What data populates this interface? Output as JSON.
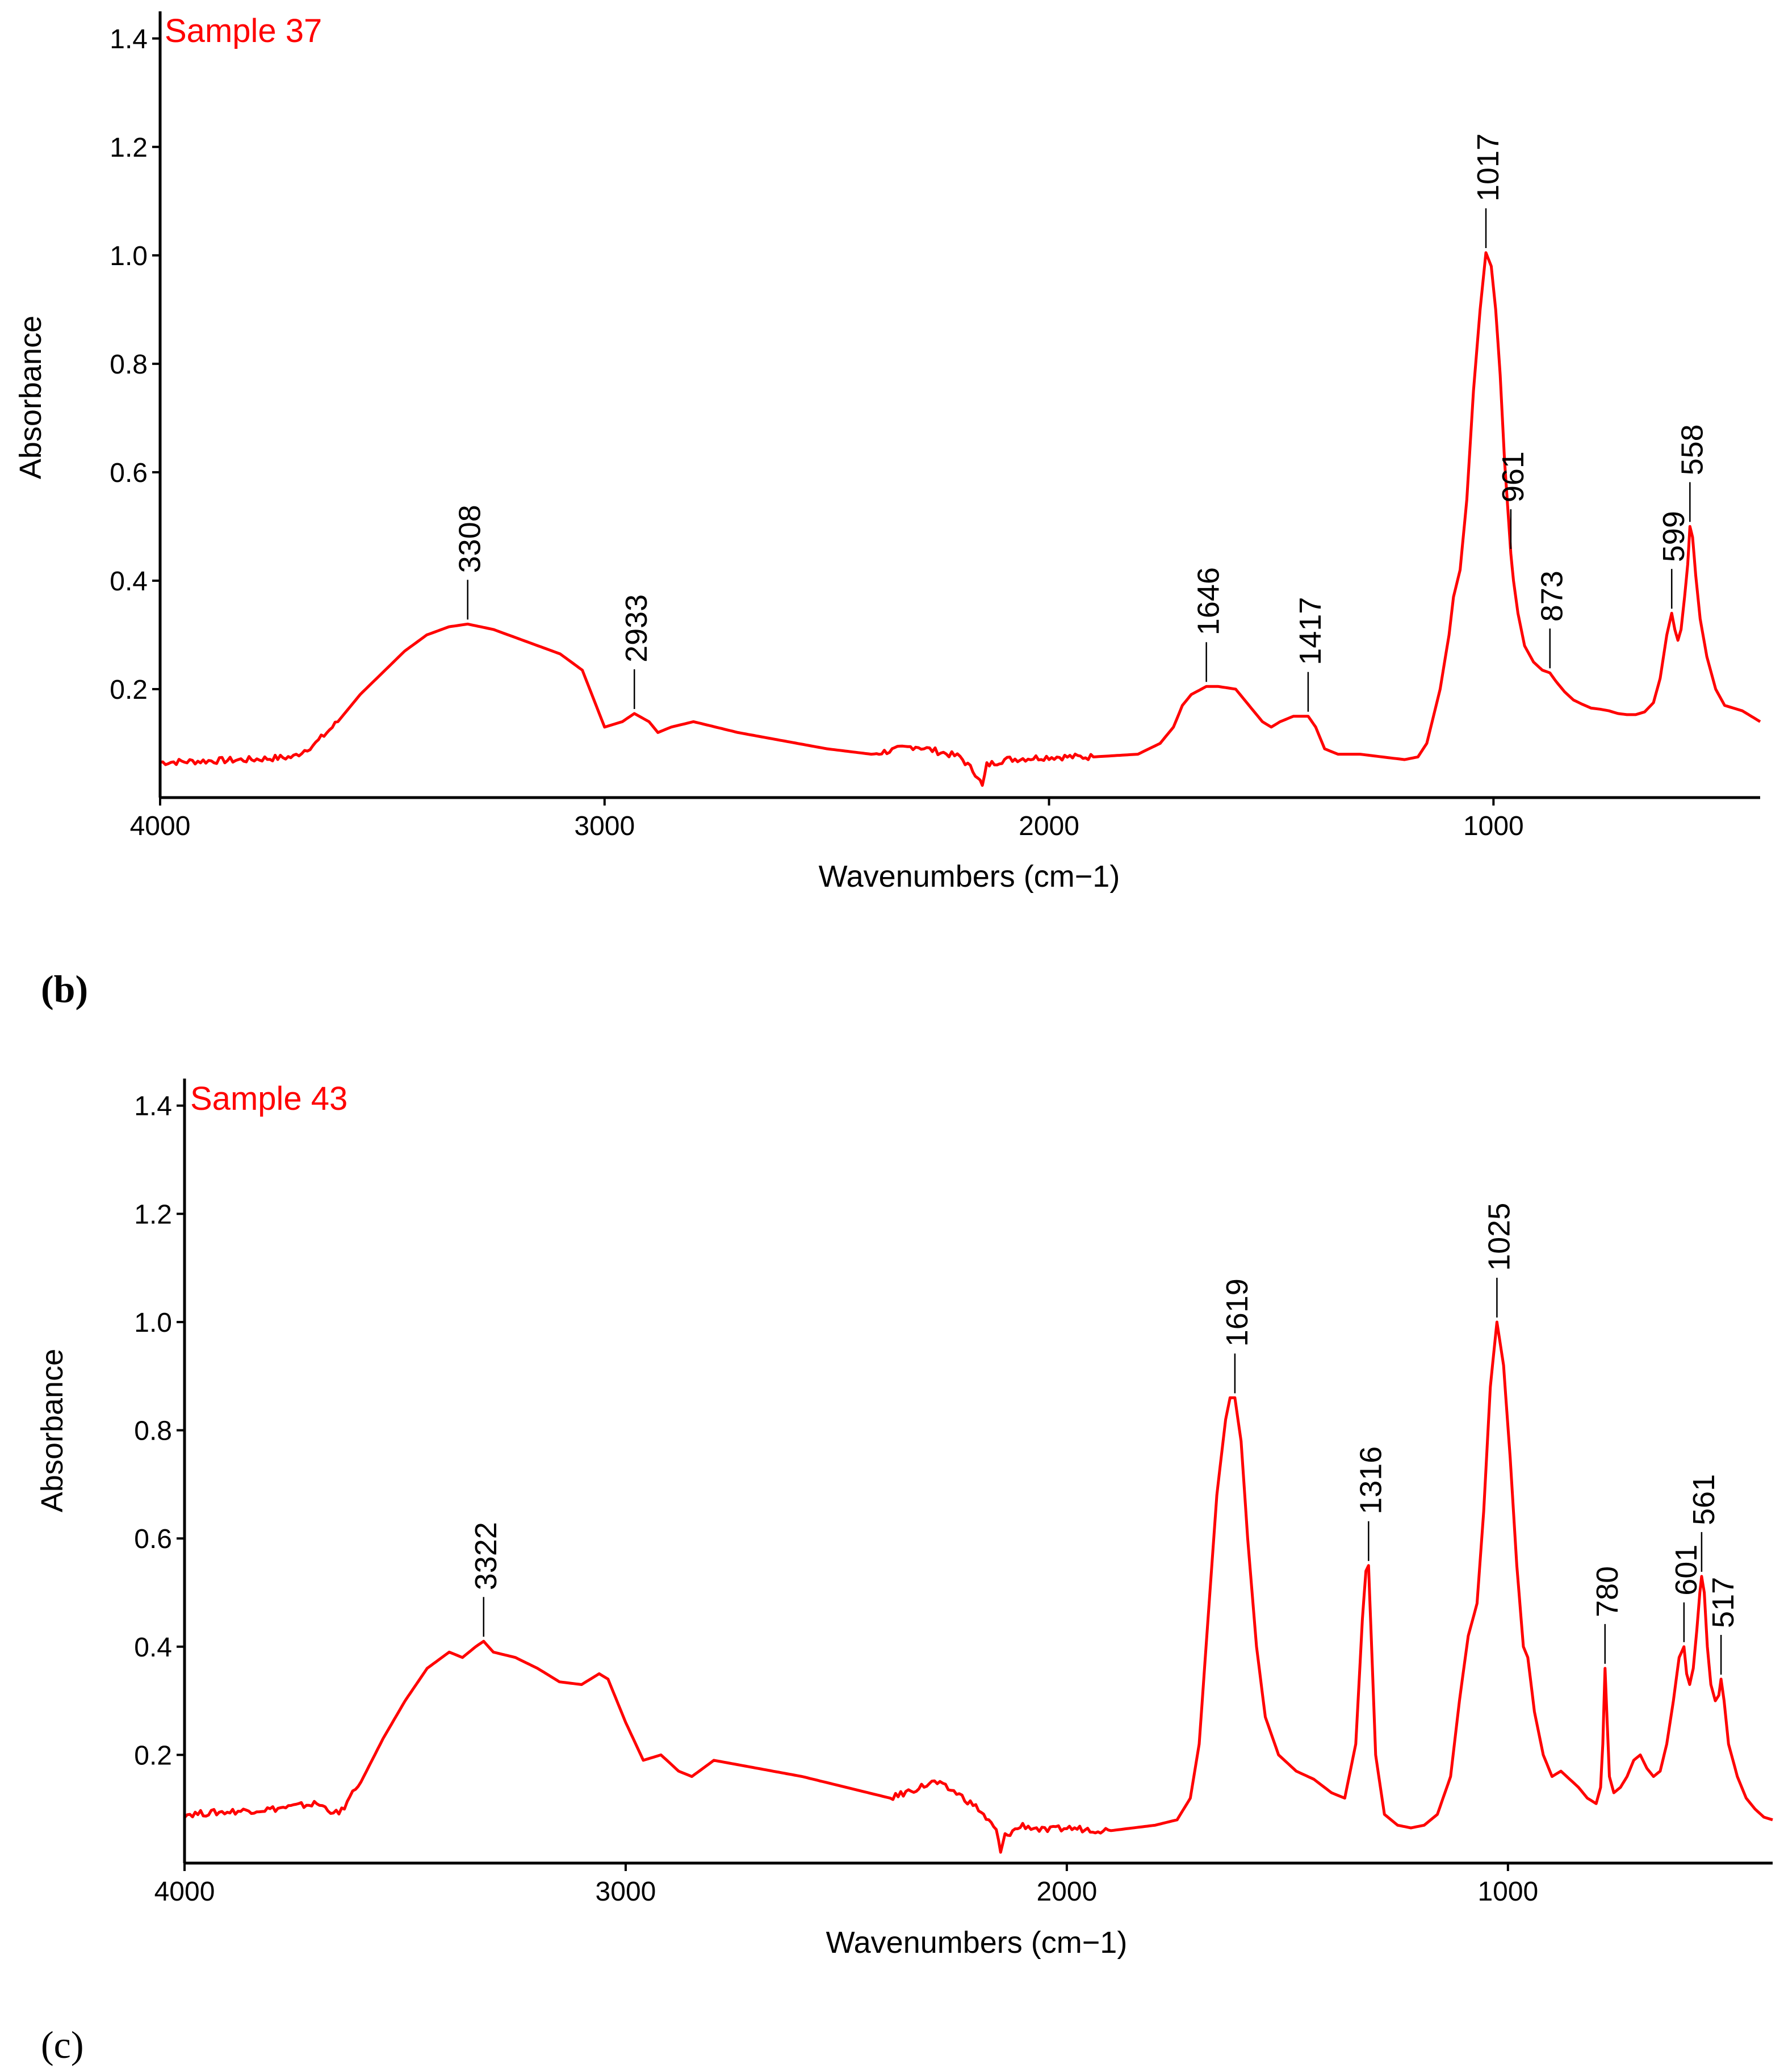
{
  "figure": {
    "series_color": "#ff0000",
    "axis_color": "#000000",
    "leader_color": "#000000"
  },
  "chart_data": [
    {
      "type": "line",
      "panel_letter": "",
      "title": "Sample 37",
      "xlabel": "Wavenumbers (cm−1)",
      "ylabel": "Absorbance",
      "xlim": [
        4000,
        400
      ],
      "ylim": [
        0,
        1.45
      ],
      "x_ticks": [
        4000,
        3000,
        2000,
        1000
      ],
      "x_tick_labels": [
        "4000",
        "3000",
        "2000",
        "1000"
      ],
      "y_ticks": [
        0.2,
        0.4,
        0.6,
        0.8,
        1.0,
        1.2,
        1.4
      ],
      "y_tick_labels": [
        "0.2",
        "0.4",
        "0.6",
        "0.8",
        "1.0",
        "1.2",
        "1.4"
      ],
      "grid": false,
      "series": [
        {
          "name": "Sample 37",
          "color": "#ff0000",
          "x": [
            4000,
            3800,
            3700,
            3650,
            3600,
            3550,
            3500,
            3450,
            3400,
            3350,
            3308,
            3250,
            3200,
            3150,
            3100,
            3050,
            3000,
            2960,
            2933,
            2900,
            2880,
            2850,
            2800,
            2700,
            2600,
            2500,
            2400,
            2300,
            2250,
            2200,
            2160,
            2150,
            2140,
            2100,
            2000,
            1900,
            1800,
            1750,
            1720,
            1700,
            1680,
            1646,
            1620,
            1580,
            1550,
            1520,
            1500,
            1480,
            1450,
            1417,
            1400,
            1380,
            1350,
            1300,
            1250,
            1200,
            1170,
            1150,
            1120,
            1100,
            1090,
            1075,
            1060,
            1045,
            1030,
            1017,
            1005,
            995,
            985,
            975,
            965,
            961,
            955,
            945,
            930,
            910,
            890,
            873,
            860,
            840,
            820,
            800,
            780,
            760,
            740,
            720,
            700,
            680,
            660,
            640,
            625,
            610,
            599,
            592,
            585,
            578,
            570,
            563,
            558,
            552,
            545,
            535,
            520,
            500,
            480,
            460,
            440,
            420,
            400
          ],
          "y": [
            0.065,
            0.07,
            0.075,
            0.1,
            0.14,
            0.19,
            0.23,
            0.27,
            0.3,
            0.315,
            0.32,
            0.31,
            0.295,
            0.28,
            0.265,
            0.235,
            0.13,
            0.14,
            0.155,
            0.14,
            0.12,
            0.13,
            0.14,
            0.12,
            0.105,
            0.09,
            0.08,
            0.095,
            0.085,
            0.075,
            0.04,
            0.02,
            0.06,
            0.07,
            0.075,
            0.075,
            0.08,
            0.1,
            0.13,
            0.17,
            0.19,
            0.205,
            0.205,
            0.2,
            0.17,
            0.14,
            0.13,
            0.14,
            0.15,
            0.15,
            0.13,
            0.09,
            0.08,
            0.08,
            0.075,
            0.07,
            0.075,
            0.1,
            0.2,
            0.3,
            0.37,
            0.42,
            0.55,
            0.75,
            0.9,
            1.005,
            0.98,
            0.9,
            0.78,
            0.62,
            0.5,
            0.45,
            0.4,
            0.34,
            0.28,
            0.25,
            0.235,
            0.23,
            0.215,
            0.195,
            0.18,
            0.172,
            0.165,
            0.163,
            0.16,
            0.155,
            0.153,
            0.153,
            0.158,
            0.175,
            0.22,
            0.3,
            0.34,
            0.31,
            0.29,
            0.31,
            0.37,
            0.43,
            0.5,
            0.48,
            0.41,
            0.33,
            0.26,
            0.2,
            0.17,
            0.165,
            0.16,
            0.15,
            0.14
          ]
        }
      ],
      "annotations": [
        {
          "label": "3308",
          "x": 3308,
          "y": 0.32
        },
        {
          "label": "2933",
          "x": 2933,
          "y": 0.155
        },
        {
          "label": "1646",
          "x": 1646,
          "y": 0.205
        },
        {
          "label": "1417",
          "x": 1417,
          "y": 0.15
        },
        {
          "label": "1017",
          "x": 1017,
          "y": 1.005
        },
        {
          "label": "961",
          "x": 961,
          "y": 0.45
        },
        {
          "label": "873",
          "x": 873,
          "y": 0.23
        },
        {
          "label": "599",
          "x": 599,
          "y": 0.34
        },
        {
          "label": "558",
          "x": 558,
          "y": 0.5
        }
      ]
    },
    {
      "type": "line",
      "panel_letter": "(b)",
      "title": "Sample 43",
      "xlabel": "Wavenumbers (cm−1)",
      "ylabel": "Absorbance",
      "xlim": [
        4000,
        400
      ],
      "ylim": [
        0,
        1.45
      ],
      "x_ticks": [
        4000,
        3000,
        2000,
        1000
      ],
      "x_tick_labels": [
        "4000",
        "3000",
        "2000",
        "1000"
      ],
      "y_ticks": [
        0.2,
        0.4,
        0.6,
        0.8,
        1.0,
        1.2,
        1.4
      ],
      "y_tick_labels": [
        "0.2",
        "0.4",
        "0.6",
        "0.8",
        "1.0",
        "1.2",
        "1.4"
      ],
      "grid": false,
      "series": [
        {
          "name": "Sample 43",
          "color": "#ff0000",
          "x": [
            4000,
            3800,
            3700,
            3650,
            3600,
            3550,
            3500,
            3450,
            3400,
            3370,
            3340,
            3322,
            3300,
            3250,
            3200,
            3150,
            3100,
            3060,
            3040,
            3000,
            2960,
            2920,
            2880,
            2850,
            2800,
            2700,
            2600,
            2500,
            2400,
            2300,
            2250,
            2200,
            2160,
            2150,
            2140,
            2100,
            2050,
            2000,
            1900,
            1800,
            1750,
            1720,
            1700,
            1680,
            1660,
            1640,
            1630,
            1619,
            1605,
            1590,
            1570,
            1550,
            1520,
            1480,
            1440,
            1400,
            1370,
            1345,
            1330,
            1322,
            1316,
            1310,
            1300,
            1280,
            1250,
            1220,
            1190,
            1160,
            1130,
            1110,
            1090,
            1070,
            1055,
            1040,
            1025,
            1010,
            995,
            980,
            965,
            955,
            940,
            920,
            900,
            880,
            860,
            840,
            820,
            800,
            790,
            785,
            780,
            775,
            770,
            760,
            745,
            730,
            715,
            700,
            685,
            670,
            655,
            640,
            625,
            612,
            601,
            595,
            588,
            580,
            572,
            565,
            561,
            555,
            548,
            540,
            530,
            522,
            517,
            510,
            500,
            480,
            460,
            440,
            420,
            400
          ],
          "y": [
            0.09,
            0.1,
            0.11,
            0.09,
            0.15,
            0.23,
            0.3,
            0.36,
            0.39,
            0.38,
            0.4,
            0.41,
            0.39,
            0.38,
            0.36,
            0.335,
            0.33,
            0.35,
            0.34,
            0.26,
            0.19,
            0.2,
            0.17,
            0.16,
            0.19,
            0.175,
            0.16,
            0.14,
            0.12,
            0.15,
            0.13,
            0.1,
            0.06,
            0.02,
            0.05,
            0.07,
            0.06,
            0.065,
            0.06,
            0.07,
            0.08,
            0.12,
            0.22,
            0.45,
            0.68,
            0.82,
            0.86,
            0.86,
            0.78,
            0.6,
            0.4,
            0.27,
            0.2,
            0.17,
            0.155,
            0.13,
            0.12,
            0.22,
            0.45,
            0.54,
            0.55,
            0.42,
            0.2,
            0.09,
            0.07,
            0.065,
            0.07,
            0.09,
            0.16,
            0.3,
            0.42,
            0.48,
            0.65,
            0.88,
            1.0,
            0.92,
            0.75,
            0.55,
            0.4,
            0.38,
            0.28,
            0.2,
            0.16,
            0.17,
            0.155,
            0.14,
            0.12,
            0.11,
            0.14,
            0.22,
            0.36,
            0.26,
            0.16,
            0.13,
            0.14,
            0.16,
            0.19,
            0.2,
            0.175,
            0.16,
            0.17,
            0.22,
            0.3,
            0.38,
            0.4,
            0.35,
            0.33,
            0.36,
            0.43,
            0.5,
            0.53,
            0.5,
            0.4,
            0.33,
            0.3,
            0.31,
            0.34,
            0.3,
            0.22,
            0.16,
            0.12,
            0.1,
            0.085,
            0.08
          ]
        }
      ],
      "annotations": [
        {
          "label": "3322",
          "x": 3322,
          "y": 0.41
        },
        {
          "label": "1619",
          "x": 1619,
          "y": 0.86
        },
        {
          "label": "1316",
          "x": 1316,
          "y": 0.55
        },
        {
          "label": "1025",
          "x": 1025,
          "y": 1.0
        },
        {
          "label": "780",
          "x": 780,
          "y": 0.36
        },
        {
          "label": "601",
          "x": 601,
          "y": 0.4
        },
        {
          "label": "561",
          "x": 561,
          "y": 0.53
        },
        {
          "label": "517",
          "x": 517,
          "y": 0.34
        }
      ]
    }
  ],
  "trailing_panel_letter": "(c)"
}
